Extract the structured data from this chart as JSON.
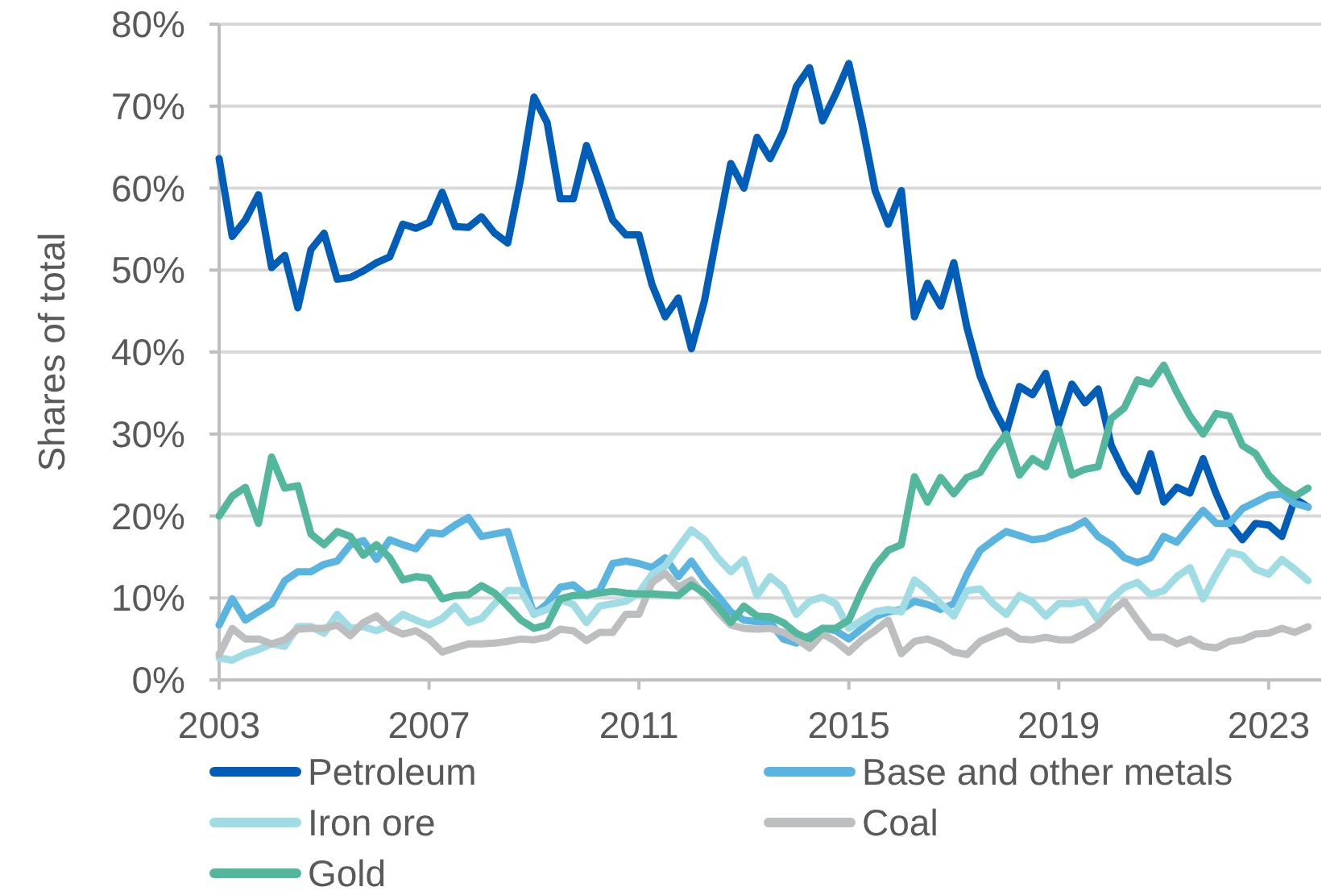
{
  "chart_data": {
    "type": "line",
    "ylabel": "Shares of total",
    "x": [
      2003,
      2003.25,
      2003.5,
      2003.75,
      2004,
      2004.25,
      2004.5,
      2004.75,
      2005,
      2005.25,
      2005.5,
      2005.75,
      2006,
      2006.25,
      2006.5,
      2006.75,
      2007,
      2007.25,
      2007.5,
      2007.75,
      2008,
      2008.25,
      2008.5,
      2008.75,
      2009,
      2009.25,
      2009.5,
      2009.75,
      2010,
      2010.25,
      2010.5,
      2010.75,
      2011,
      2011.25,
      2011.5,
      2011.75,
      2012,
      2012.25,
      2012.5,
      2012.75,
      2013,
      2013.25,
      2013.5,
      2013.75,
      2014,
      2014.25,
      2014.5,
      2014.75,
      2015,
      2015.25,
      2015.5,
      2015.75,
      2016,
      2016.25,
      2016.5,
      2016.75,
      2017,
      2017.25,
      2017.5,
      2017.75,
      2018,
      2018.25,
      2018.5,
      2018.75,
      2019,
      2019.25,
      2019.5,
      2019.75,
      2020,
      2020.25,
      2020.5,
      2020.75,
      2021,
      2021.25,
      2021.5,
      2021.75,
      2022,
      2022.25,
      2022.5,
      2022.75,
      2023,
      2023.25,
      2023.5,
      2023.75
    ],
    "series": [
      {
        "name": "Petroleum",
        "color": "#005eb8",
        "values": [
          63.6,
          54.1,
          56.1,
          59.2,
          50.3,
          51.8,
          45.4,
          52.5,
          54.5,
          48.9,
          49.1,
          49.9,
          50.9,
          51.6,
          55.6,
          55.1,
          55.8,
          59.5,
          55.3,
          55.2,
          56.5,
          54.5,
          53.3,
          61.3,
          71.1,
          68.0,
          58.7,
          58.7,
          65.2,
          60.7,
          56.1,
          54.3,
          54.3,
          48.2,
          44.3,
          46.6,
          40.4,
          46.3,
          54.8,
          63.0,
          60.0,
          66.2,
          63.6,
          66.9,
          72.4,
          74.7,
          68.2,
          71.5,
          75.2,
          67.9,
          59.7,
          55.6,
          59.7,
          44.3,
          48.4,
          45.6,
          50.9,
          43.0,
          37.1,
          33.2,
          30.2,
          35.8,
          34.8,
          37.4,
          31.2,
          36.1,
          33.8,
          35.5,
          28.6,
          25.3,
          23.0,
          27.6,
          21.7,
          23.5,
          22.8,
          27.0,
          22.7,
          19.1,
          17.1,
          19.1,
          18.9,
          17.5,
          22.1,
          21.1
        ]
      },
      {
        "name": "Base and other metals",
        "color": "#5ab4e0",
        "values": [
          6.7,
          9.9,
          7.3,
          8.3,
          9.3,
          12.1,
          13.2,
          13.2,
          14.1,
          14.5,
          16.5,
          17.0,
          14.7,
          17.1,
          16.5,
          16.0,
          18.0,
          17.8,
          18.9,
          19.8,
          17.5,
          17.8,
          18.1,
          12.9,
          8.0,
          9.3,
          11.3,
          11.6,
          10.3,
          10.9,
          14.2,
          14.5,
          14.2,
          13.7,
          14.9,
          12.6,
          14.5,
          12.2,
          10.3,
          8.3,
          7.3,
          7.1,
          7.0,
          5.0,
          4.5,
          5.4,
          6.3,
          6.0,
          5.0,
          6.3,
          7.7,
          8.3,
          8.6,
          9.6,
          9.2,
          8.6,
          9.3,
          12.9,
          15.8,
          17.0,
          18.1,
          17.6,
          17.1,
          17.3,
          18.0,
          18.5,
          19.4,
          17.5,
          16.5,
          14.9,
          14.3,
          14.9,
          17.5,
          16.8,
          18.8,
          20.7,
          19.1,
          19.1,
          20.9,
          21.7,
          22.5,
          22.7,
          21.5,
          21.1
        ]
      },
      {
        "name": "Iron ore",
        "color": "#a0dce3",
        "values": [
          2.7,
          2.4,
          3.2,
          3.7,
          4.4,
          4.1,
          6.5,
          6.5,
          5.7,
          8.0,
          6.3,
          6.5,
          6.0,
          6.7,
          8.0,
          7.3,
          6.7,
          7.5,
          9.0,
          7.0,
          7.5,
          9.3,
          10.9,
          10.9,
          8.0,
          8.6,
          9.8,
          9.2,
          7.0,
          9.0,
          9.3,
          9.6,
          10.6,
          12.9,
          13.9,
          16.2,
          18.3,
          17.1,
          14.9,
          13.2,
          14.7,
          10.3,
          12.6,
          11.3,
          8.0,
          9.6,
          10.1,
          9.3,
          6.3,
          7.3,
          8.3,
          8.6,
          8.3,
          12.2,
          10.9,
          9.3,
          7.8,
          10.9,
          11.1,
          9.3,
          8.0,
          10.3,
          9.5,
          7.8,
          9.3,
          9.3,
          9.6,
          7.3,
          9.9,
          11.3,
          11.9,
          10.4,
          10.9,
          12.6,
          13.7,
          9.9,
          12.9,
          15.6,
          15.2,
          13.5,
          12.9,
          14.7,
          13.5,
          12.1
        ]
      },
      {
        "name": "Coal",
        "color": "#bcbec0",
        "values": [
          3.1,
          6.3,
          5.0,
          5.0,
          4.4,
          4.9,
          6.2,
          6.3,
          6.3,
          6.7,
          5.4,
          7.0,
          7.8,
          6.3,
          5.6,
          6.0,
          5.0,
          3.4,
          3.9,
          4.4,
          4.4,
          4.5,
          4.7,
          5.0,
          4.9,
          5.2,
          6.2,
          6.0,
          4.8,
          5.8,
          5.8,
          8.0,
          8.0,
          11.9,
          13.0,
          11.3,
          12.2,
          10.3,
          8.3,
          6.7,
          6.3,
          6.2,
          6.3,
          5.8,
          5.0,
          3.9,
          5.6,
          4.7,
          3.4,
          4.9,
          6.0,
          7.3,
          3.2,
          4.7,
          5.0,
          4.4,
          3.4,
          3.1,
          4.7,
          5.4,
          6.0,
          5.0,
          4.9,
          5.2,
          4.9,
          4.9,
          5.7,
          6.7,
          8.3,
          9.6,
          7.3,
          5.2,
          5.2,
          4.4,
          5.0,
          4.1,
          3.9,
          4.7,
          4.9,
          5.6,
          5.7,
          6.3,
          5.8,
          6.5
        ]
      },
      {
        "name": "Gold",
        "color": "#52b79c",
        "values": [
          20.0,
          22.4,
          23.5,
          19.1,
          27.2,
          23.4,
          23.7,
          17.8,
          16.5,
          18.1,
          17.5,
          15.2,
          16.5,
          14.9,
          12.2,
          12.6,
          12.4,
          9.9,
          10.3,
          10.4,
          11.5,
          10.6,
          9.0,
          7.3,
          6.3,
          6.7,
          9.9,
          10.3,
          10.4,
          10.6,
          10.8,
          10.6,
          10.5,
          10.5,
          10.4,
          10.3,
          11.6,
          10.6,
          9.0,
          7.0,
          9.0,
          7.8,
          7.7,
          7.0,
          5.7,
          5.0,
          6.3,
          6.3,
          7.3,
          10.9,
          13.9,
          15.8,
          16.5,
          24.8,
          21.7,
          24.7,
          22.7,
          24.7,
          25.3,
          27.9,
          30.0,
          25.0,
          27.0,
          26.0,
          30.6,
          25.0,
          25.7,
          26.0,
          31.9,
          33.2,
          36.6,
          36.1,
          38.4,
          35.1,
          32.2,
          30.0,
          32.5,
          32.2,
          28.6,
          27.6,
          25.0,
          23.4,
          22.4,
          23.4
        ]
      }
    ],
    "xlim": [
      2003,
      2024
    ],
    "xticks": [
      2003,
      2007,
      2011,
      2015,
      2019,
      2023
    ],
    "ylim": [
      0,
      80
    ],
    "yticks": [
      {
        "value": 0,
        "label": "0%"
      },
      {
        "value": 10,
        "label": "10%"
      },
      {
        "value": 20,
        "label": "20%"
      },
      {
        "value": 30,
        "label": "30%"
      },
      {
        "value": 40,
        "label": "40%"
      },
      {
        "value": 50,
        "label": "50%"
      },
      {
        "value": 60,
        "label": "60%"
      },
      {
        "value": 70,
        "label": "70%"
      },
      {
        "value": 80,
        "label": "80%"
      }
    ],
    "grid": "y",
    "legend": "bottom",
    "line_style": "solid"
  }
}
